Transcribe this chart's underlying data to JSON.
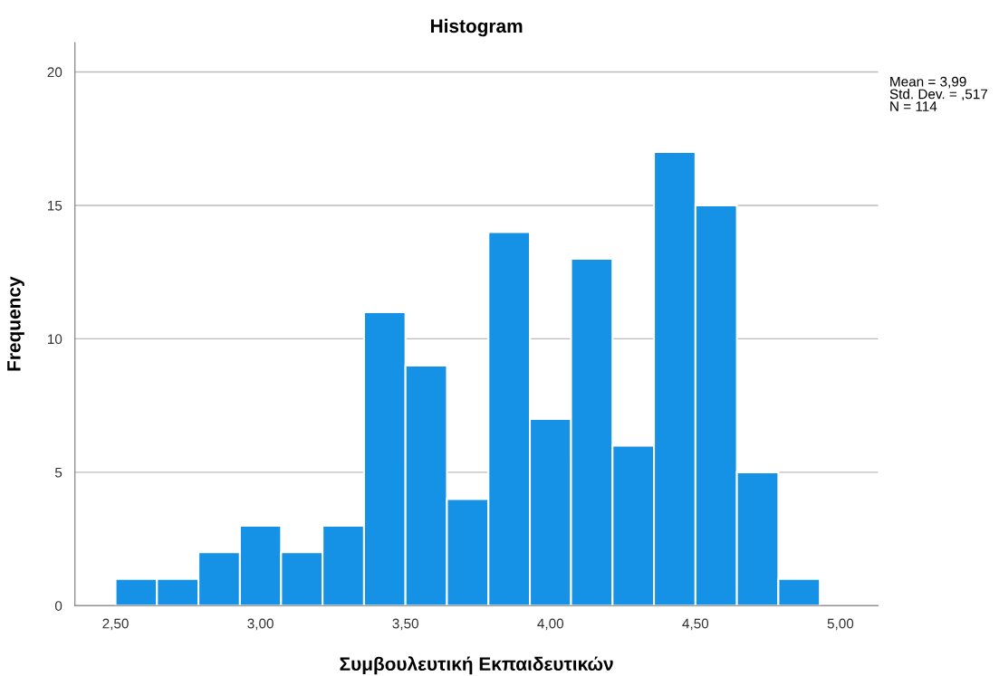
{
  "chart_data": {
    "type": "histogram",
    "title": "Histogram",
    "xlabel": "Συμβουλευτική Εκπαιδευτικών",
    "ylabel": "Frequency",
    "bins": [
      2.5,
      2.643,
      2.786,
      2.929,
      3.071,
      3.214,
      3.357,
      3.5,
      3.643,
      3.786,
      3.929,
      4.071,
      4.214,
      4.357,
      4.5,
      4.643,
      4.786,
      4.929
    ],
    "values": [
      1,
      1,
      2,
      3,
      2,
      3,
      11,
      9,
      4,
      14,
      7,
      13,
      6,
      17,
      15,
      5,
      1
    ],
    "color": "#1591e6",
    "xlim": [
      2.36,
      5.13
    ],
    "xticks": [
      {
        "value": 2.5,
        "label": "2,50"
      },
      {
        "value": 3.0,
        "label": "3,00"
      },
      {
        "value": 3.5,
        "label": "3,50"
      },
      {
        "value": 4.0,
        "label": "4,00"
      },
      {
        "value": 4.5,
        "label": "4,50"
      },
      {
        "value": 5.0,
        "label": "5,00"
      }
    ],
    "ylim": [
      0,
      21.1
    ],
    "yticks": [
      0,
      5,
      10,
      15,
      20
    ],
    "grid": "y",
    "annotations": [
      "Mean = 3,99\nStd. Dev. = ,517\nN = 114"
    ]
  }
}
